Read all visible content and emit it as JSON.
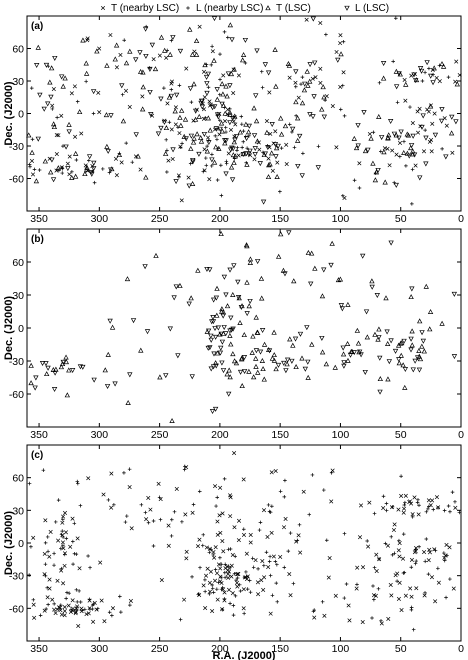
{
  "legend": [
    {
      "marker": "x",
      "label": "T (nearby LSC)"
    },
    {
      "marker": "plus",
      "label": "L (nearby LSC)"
    },
    {
      "marker": "tri-up",
      "label": "T (LSC)"
    },
    {
      "marker": "tri-down",
      "label": "L (LSC)"
    }
  ],
  "chart_data": [
    {
      "panel": "(a)",
      "type": "scatter",
      "xlabel": "",
      "ylabel": "Dec. (J2000)",
      "xlim": [
        360,
        0
      ],
      "ylim": [
        -90,
        90
      ],
      "xticks": [
        350,
        300,
        250,
        200,
        150,
        100,
        50,
        0
      ],
      "yticks": [
        60,
        30,
        0,
        -30,
        -60
      ],
      "series": [
        "T (nearby LSC)",
        "L (nearby LSC)",
        "T (LSC)",
        "L (LSC)"
      ],
      "regions": [
        {
          "ra": 200,
          "dec": -15,
          "sra": 14,
          "sdec": 25,
          "n": 110
        },
        {
          "ra": 165,
          "dec": -30,
          "sra": 18,
          "sdec": 14,
          "n": 50
        },
        {
          "ra": 230,
          "dec": -15,
          "sra": 18,
          "sdec": 20,
          "n": 45
        },
        {
          "ra": 325,
          "dec": -50,
          "sra": 28,
          "sdec": 6,
          "n": 55
        },
        {
          "ra": 40,
          "dec": -20,
          "sra": 20,
          "sdec": 20,
          "n": 70
        },
        {
          "ra": 30,
          "dec": 35,
          "sra": 18,
          "sdec": 6,
          "n": 35
        },
        {
          "ra": 120,
          "dec": 20,
          "sra": 20,
          "sdec": 25,
          "n": 35
        },
        {
          "ra": 240,
          "dec": 55,
          "sra": 45,
          "sdec": 12,
          "n": 45
        },
        {
          "ra": 340,
          "dec": 0,
          "sra": 15,
          "sdec": 30,
          "n": 45
        },
        {
          "ra": 90,
          "dec": -45,
          "sra": 30,
          "sdec": 15,
          "n": 30
        },
        {
          "ra": 180,
          "dec": 30,
          "sra": 60,
          "sdec": 35,
          "n": 90
        },
        {
          "ra": 280,
          "dec": 0,
          "sra": 50,
          "sdec": 50,
          "n": 40
        }
      ]
    },
    {
      "panel": "(b)",
      "type": "scatter",
      "xlabel": "",
      "ylabel": "Dec. (J2000)",
      "xlim": [
        360,
        0
      ],
      "ylim": [
        -90,
        90
      ],
      "xticks": [
        350,
        300,
        250,
        200,
        150,
        100,
        50,
        0
      ],
      "yticks": [
        60,
        30,
        0,
        -30,
        -60
      ],
      "series": [
        "T (LSC)",
        "L (LSC)"
      ],
      "regions": [
        {
          "ra": 195,
          "dec": -10,
          "sra": 12,
          "sdec": 25,
          "n": 60
        },
        {
          "ra": 160,
          "dec": -30,
          "sra": 15,
          "sdec": 12,
          "n": 30
        },
        {
          "ra": 45,
          "dec": -20,
          "sra": 22,
          "sdec": 15,
          "n": 40
        },
        {
          "ra": 330,
          "dec": -40,
          "sra": 20,
          "sdec": 8,
          "n": 25
        },
        {
          "ra": 100,
          "dec": -20,
          "sra": 18,
          "sdec": 8,
          "n": 20
        },
        {
          "ra": 180,
          "dec": 30,
          "sra": 50,
          "sdec": 35,
          "n": 50
        },
        {
          "ra": 240,
          "dec": 0,
          "sra": 40,
          "sdec": 40,
          "n": 25
        },
        {
          "ra": 60,
          "dec": 30,
          "sra": 40,
          "sdec": 35,
          "n": 20
        }
      ]
    },
    {
      "panel": "(c)",
      "type": "scatter",
      "xlabel": "R.A. (J2000)",
      "ylabel": "Dec. (J2000)",
      "xlim": [
        360,
        0
      ],
      "ylim": [
        -90,
        90
      ],
      "xticks": [
        350,
        300,
        250,
        200,
        150,
        100,
        50,
        0
      ],
      "yticks": [
        60,
        30,
        0,
        -30,
        -60
      ],
      "series": [
        "T (nearby LSC)",
        "L (nearby LSC)"
      ],
      "regions": [
        {
          "ra": 200,
          "dec": -25,
          "sra": 14,
          "sdec": 20,
          "n": 90
        },
        {
          "ra": 170,
          "dec": -30,
          "sra": 15,
          "sdec": 15,
          "n": 45
        },
        {
          "ra": 320,
          "dec": -60,
          "sra": 30,
          "sdec": 6,
          "n": 70
        },
        {
          "ra": 40,
          "dec": -15,
          "sra": 20,
          "sdec": 20,
          "n": 75
        },
        {
          "ra": 30,
          "dec": 35,
          "sra": 20,
          "sdec": 6,
          "n": 45
        },
        {
          "ra": 335,
          "dec": -10,
          "sra": 15,
          "sdec": 25,
          "n": 50
        },
        {
          "ra": 230,
          "dec": 40,
          "sra": 45,
          "sdec": 18,
          "n": 45
        },
        {
          "ra": 130,
          "dec": 10,
          "sra": 30,
          "sdec": 30,
          "n": 40
        },
        {
          "ra": 300,
          "dec": 20,
          "sra": 40,
          "sdec": 30,
          "n": 30
        },
        {
          "ra": 80,
          "dec": -55,
          "sra": 40,
          "sdec": 12,
          "n": 25
        }
      ]
    }
  ]
}
